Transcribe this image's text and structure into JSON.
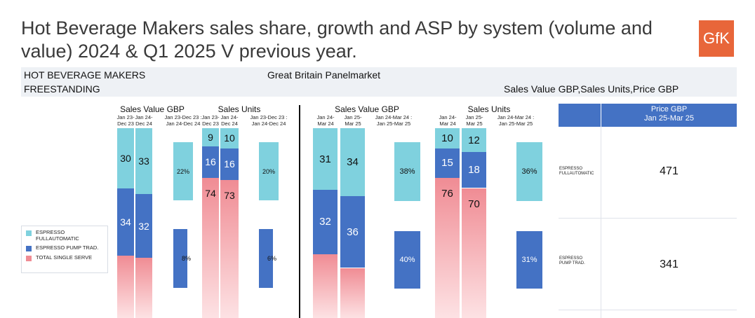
{
  "header": {
    "title": "Hot Beverage Makers sales share, growth and ASP by system (volume and value) 2024 & Q1 2025 V previous year.",
    "logo": "GfK",
    "category_line1": "HOT BEVERAGE MAKERS",
    "category_line2": "FREESTANDING",
    "market": "Great Britain Panelmarket",
    "measures": "Sales Value GBP,Sales Units,Price GBP"
  },
  "colors": {
    "fullauto": "#7fd1de",
    "pump": "#4472c4",
    "single": "#f4a4a8"
  },
  "legend": [
    {
      "label": "ESPRESSO FULLAUTOMATIC",
      "color": "#7fd1de"
    },
    {
      "label": "ESPRESSO PUMP TRAD.",
      "color": "#4472c4"
    },
    {
      "label": "TOTAL SINGLE SERVE",
      "color": "#f08c94"
    }
  ],
  "chart_data": {
    "type": "bar",
    "stacked": true,
    "series_names": [
      "ESPRESSO FULLAUTOMATIC",
      "ESPRESSO PUMP TRAD.",
      "TOTAL SINGLE SERVE"
    ],
    "groups": [
      {
        "title": "Sales Value GBP",
        "periods": [
          "Jan 23-Dec 23",
          "Jan 24-Dec 24"
        ],
        "shares": [
          {
            "fullauto": 30,
            "pump": 34,
            "single": null
          },
          {
            "fullauto": 33,
            "pump": 32,
            "single": null
          }
        ],
        "growth_header": "Jan 23-Dec 23 : Jan 24-Dec 24",
        "growth": {
          "fullauto": "22%",
          "pump": "8%"
        }
      },
      {
        "title": "Sales Units",
        "periods": [
          "Jan 23-Dec 23",
          "Jan 24-Dec 24"
        ],
        "shares": [
          {
            "fullauto": 9,
            "pump": 16,
            "single": 74
          },
          {
            "fullauto": 10,
            "pump": 16,
            "single": 73
          }
        ],
        "growth_header": "Jan 23-Dec 23 : Jan 24-Dec 24",
        "growth": {
          "fullauto": "20%",
          "pump": "6%"
        }
      },
      {
        "title": "Sales Value GBP",
        "periods": [
          "Jan 24-Mar 24",
          "Jan 25-Mar 25"
        ],
        "shares": [
          {
            "fullauto": 31,
            "pump": 32,
            "single": null
          },
          {
            "fullauto": 34,
            "pump": 36,
            "single": null
          }
        ],
        "growth_header": "Jan 24-Mar 24 : Jan 25-Mar 25",
        "growth": {
          "fullauto": "38%",
          "pump": "40%"
        }
      },
      {
        "title": "Sales Units",
        "periods": [
          "Jan 24-Mar 24",
          "Jan 25-Mar 25"
        ],
        "shares": [
          {
            "fullauto": 10,
            "pump": 15,
            "single": 76
          },
          {
            "fullauto": 12,
            "pump": 18,
            "single": 70
          }
        ],
        "growth_header": "Jan 24-Mar 24 : Jan 25-Mar 25",
        "growth": {
          "fullauto": "36%",
          "pump": "31%"
        }
      }
    ],
    "price_table": {
      "header_line1": "Price GBP",
      "header_line2": "Jan 25-Mar 25",
      "rows": [
        {
          "label": "ESPRESSO FULLAUTOMATIC",
          "value": 471
        },
        {
          "label": "ESPRESSO PUMP TRAD.",
          "value": 341
        }
      ]
    }
  }
}
